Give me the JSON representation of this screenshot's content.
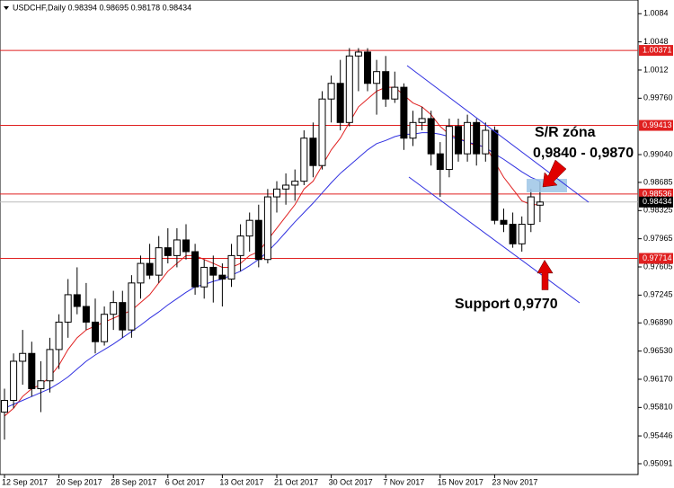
{
  "chart_data": {
    "type": "candlestick",
    "title": "USDCHF,Daily 0.98394 0.98695 0.98178 0.98434",
    "categories": [
      "12 Sep 2017",
      null,
      null,
      null,
      null,
      null,
      "20 Sep 2017",
      null,
      null,
      null,
      null,
      null,
      "28 Sep 2017",
      null,
      null,
      null,
      null,
      null,
      "6 Oct 2017",
      null,
      null,
      null,
      null,
      null,
      "13 Oct 2017",
      null,
      null,
      null,
      null,
      null,
      "21 Oct 2017",
      null,
      null,
      null,
      null,
      null,
      "30 Oct 2017",
      null,
      null,
      null,
      null,
      null,
      "7 Nov 2017",
      null,
      null,
      null,
      null,
      null,
      "15 Nov 2017",
      null,
      null,
      null,
      null,
      null,
      "23 Nov 2017",
      null,
      null,
      null,
      null,
      null
    ],
    "open": [
      0.9575,
      0.959,
      0.964,
      0.965,
      0.9605,
      0.9615,
      0.9655,
      0.969,
      0.9725,
      0.971,
      0.969,
      0.9665,
      0.97,
      0.9715,
      0.968,
      0.974,
      0.9765,
      0.975,
      0.9785,
      0.9775,
      0.9795,
      0.978,
      0.9735,
      0.976,
      0.975,
      0.9745,
      0.9775,
      0.98,
      0.982,
      0.977,
      0.985,
      0.986,
      0.9865,
      0.987,
      0.9925,
      0.989,
      0.9975,
      0.9995,
      0.9945,
      1.003,
      1.0035,
      0.9995,
      1.001,
      0.9975,
      0.999,
      0.9925,
      0.9945,
      0.995,
      0.9905,
      0.9885,
      0.994,
      0.9905,
      0.9945,
      0.9905,
      0.9935,
      0.982,
      0.9815,
      0.979,
      0.9815,
      0.98394
    ],
    "high": [
      0.9605,
      0.965,
      0.968,
      0.9665,
      0.964,
      0.967,
      0.97,
      0.9745,
      0.976,
      0.974,
      0.972,
      0.971,
      0.973,
      0.973,
      0.975,
      0.9775,
      0.979,
      0.98,
      0.981,
      0.981,
      0.9815,
      0.979,
      0.977,
      0.9775,
      0.9765,
      0.979,
      0.9815,
      0.983,
      0.984,
      0.986,
      0.987,
      0.988,
      0.9885,
      0.9935,
      0.9945,
      0.9985,
      1.0005,
      1.0025,
      1.004,
      1.004,
      1.004,
      1.0025,
      1.003,
      1.001,
      0.9995,
      0.996,
      0.9965,
      0.996,
      0.992,
      0.995,
      0.995,
      0.9955,
      0.995,
      0.9945,
      0.994,
      0.9835,
      0.983,
      0.9825,
      0.986,
      0.98695
    ],
    "low": [
      0.954,
      0.958,
      0.961,
      0.9595,
      0.9575,
      0.96,
      0.963,
      0.967,
      0.97,
      0.968,
      0.965,
      0.966,
      0.968,
      0.967,
      0.967,
      0.972,
      0.9745,
      0.974,
      0.9765,
      0.976,
      0.977,
      0.9725,
      0.972,
      0.9715,
      0.971,
      0.9735,
      0.9755,
      0.978,
      0.976,
      0.9765,
      0.983,
      0.984,
      0.9845,
      0.9865,
      0.9875,
      0.9885,
      0.9945,
      0.9935,
      0.994,
      0.9985,
      0.9985,
      0.9955,
      0.9965,
      0.997,
      0.991,
      0.9915,
      0.9935,
      0.989,
      0.985,
      0.9875,
      0.9895,
      0.9895,
      0.989,
      0.9895,
      0.9815,
      0.9805,
      0.9785,
      0.978,
      0.9805,
      0.98178
    ],
    "close": [
      0.959,
      0.964,
      0.965,
      0.9605,
      0.9615,
      0.9655,
      0.969,
      0.9725,
      0.971,
      0.969,
      0.9665,
      0.97,
      0.9715,
      0.968,
      0.974,
      0.9765,
      0.975,
      0.9785,
      0.9775,
      0.9795,
      0.978,
      0.9735,
      0.976,
      0.975,
      0.9745,
      0.9775,
      0.98,
      0.982,
      0.977,
      0.985,
      0.986,
      0.9865,
      0.987,
      0.9925,
      0.989,
      0.9975,
      0.9995,
      0.9945,
      1.003,
      1.0035,
      0.9995,
      1.001,
      0.9975,
      0.999,
      0.9925,
      0.9945,
      0.995,
      0.9905,
      0.9885,
      0.994,
      0.9905,
      0.9945,
      0.9905,
      0.9935,
      0.982,
      0.9815,
      0.979,
      0.9815,
      0.985,
      0.98434
    ],
    "indicators": [
      {
        "color": "#e02020",
        "values": [
          0.957,
          0.958,
          0.9595,
          0.9605,
          0.961,
          0.962,
          0.9635,
          0.9655,
          0.967,
          0.968,
          0.9685,
          0.969,
          0.9695,
          0.97,
          0.9705,
          0.9715,
          0.9725,
          0.974,
          0.9755,
          0.9765,
          0.9775,
          0.9775,
          0.977,
          0.9765,
          0.976,
          0.976,
          0.9765,
          0.9775,
          0.978,
          0.9795,
          0.981,
          0.9825,
          0.984,
          0.986,
          0.987,
          0.989,
          0.991,
          0.9925,
          0.9945,
          0.9965,
          0.9975,
          0.9985,
          0.999,
          0.999,
          0.998,
          0.997,
          0.9965,
          0.9955,
          0.994,
          0.993,
          0.9925,
          0.992,
          0.9915,
          0.9915,
          0.9895,
          0.9875,
          0.986,
          0.9845,
          0.984,
          0.984
        ]
      },
      {
        "color": "#3030e0",
        "values": [
          0.958,
          0.9585,
          0.959,
          0.9595,
          0.96,
          0.9605,
          0.9612,
          0.962,
          0.963,
          0.964,
          0.9648,
          0.9655,
          0.9662,
          0.967,
          0.9678,
          0.9686,
          0.9695,
          0.9703,
          0.9712,
          0.972,
          0.9728,
          0.9735,
          0.9738,
          0.9742,
          0.9745,
          0.975,
          0.9755,
          0.9762,
          0.977,
          0.978,
          0.9792,
          0.9805,
          0.9818,
          0.983,
          0.9842,
          0.9855,
          0.9868,
          0.988,
          0.989,
          0.99,
          0.991,
          0.9918,
          0.9922,
          0.9927,
          0.993,
          0.993,
          0.9932,
          0.9932,
          0.993,
          0.9927,
          0.9924,
          0.992,
          0.9917,
          0.9913,
          0.9905,
          0.9898,
          0.989,
          0.9882,
          0.9875,
          0.987
        ]
      }
    ],
    "levels": [
      1.00371,
      0.99413,
      0.98536,
      0.97714
    ],
    "level_color": "#e02020",
    "current_price": 0.98434,
    "ylim": [
      0.94953,
      1.01015
    ],
    "yticks": [
      1.0084,
      1.0048,
      1.0012,
      {
        "value": 0.9976,
        "label": "0.99760"
      },
      {
        "value": 0.9904,
        "label": "0.99040"
      },
      0.98685,
      0.98325,
      0.97965,
      0.97605,
      0.97245,
      {
        "value": 0.9689,
        "label": "0.96890"
      },
      {
        "value": 0.9653,
        "label": "0.96530"
      },
      {
        "value": 0.9617,
        "label": "0.96170"
      },
      {
        "value": 0.9581,
        "label": "0.95810"
      },
      0.95446,
      0.95091
    ],
    "annotations": [
      "S/R zóna",
      "0,9840 - 0,9870",
      "Support 0,9770"
    ]
  }
}
